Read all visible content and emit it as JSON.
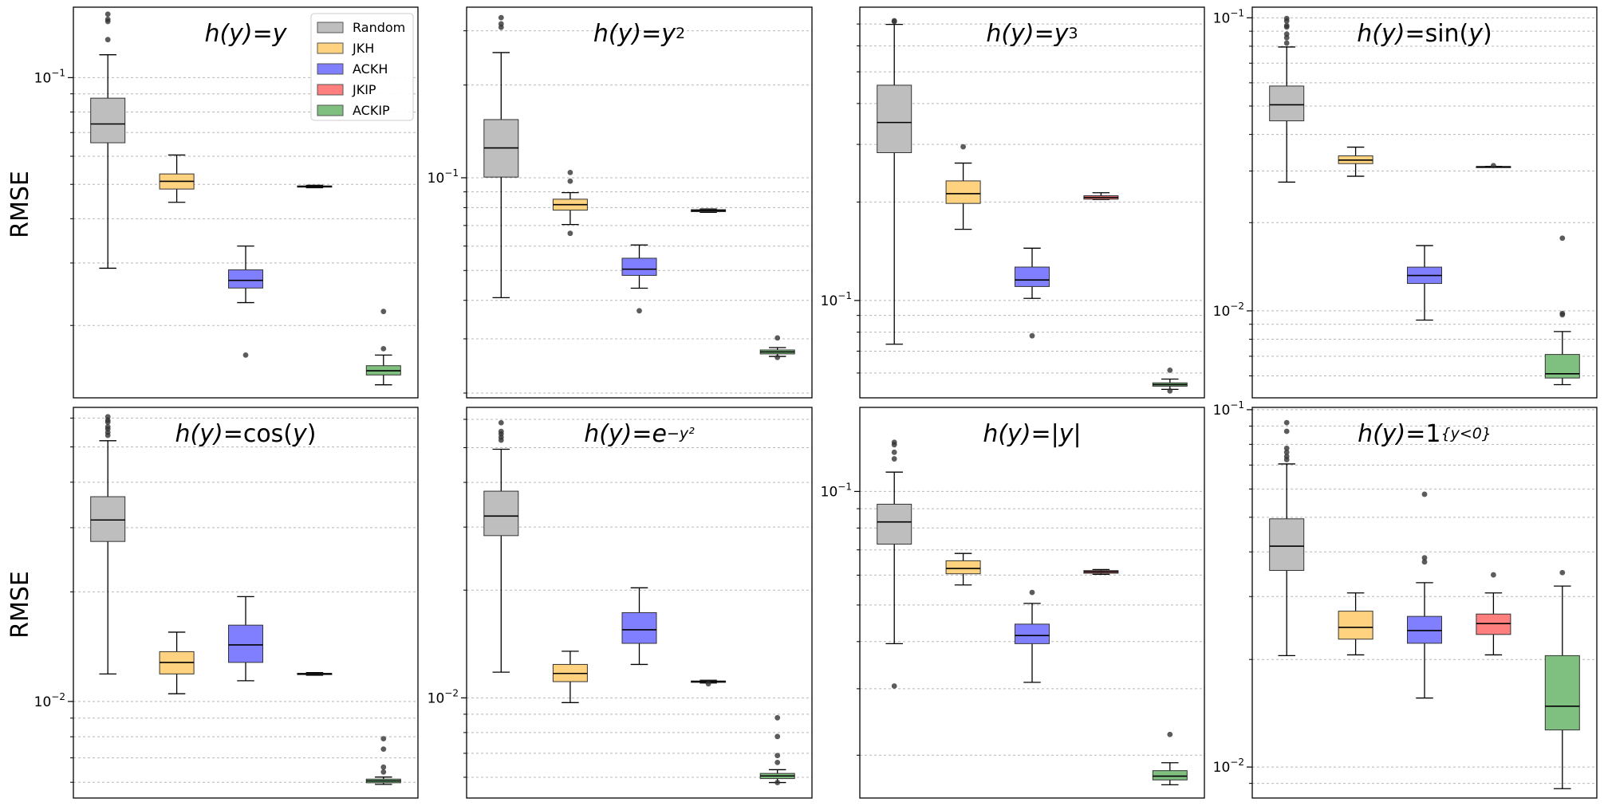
{
  "chart_data": [
    {
      "type": "box",
      "title": "h(y) = y",
      "ylabel": "RMSE",
      "yscale": "log",
      "ylim": [
        0.0125,
        0.158
      ],
      "yticks": [
        {
          "value": 0.1,
          "label": "10",
          "exp": "−1"
        }
      ],
      "legend": {
        "position": "top-right",
        "entries": [
          {
            "name": "Random",
            "color": "#bebebe"
          },
          {
            "name": "JKH",
            "color": "#ffd27f"
          },
          {
            "name": "ACKH",
            "color": "#7f7fff"
          },
          {
            "name": "JKIP",
            "color": "#ff7f7f"
          },
          {
            "name": "ACKIP",
            "color": "#7fbf7f"
          }
        ]
      },
      "boxes": [
        {
          "name": "Random",
          "color": "#bebebe",
          "q1": 0.0655,
          "median": 0.074,
          "q3": 0.0875,
          "wlo": 0.029,
          "whi": 0.116,
          "fliers": [
            0.151,
            0.146,
            0.144,
            0.128
          ]
        },
        {
          "name": "JKH",
          "color": "#ffd27f",
          "q1": 0.0485,
          "median": 0.051,
          "q3": 0.0535,
          "wlo": 0.0445,
          "whi": 0.0605,
          "fliers": []
        },
        {
          "name": "ACKH",
          "color": "#7f7fff",
          "q1": 0.0255,
          "median": 0.0268,
          "q3": 0.0287,
          "wlo": 0.0232,
          "whi": 0.0335,
          "fliers": [
            0.0165
          ]
        },
        {
          "name": "JKIP",
          "color": "#ff7f7f",
          "q1": 0.0491,
          "median": 0.0493,
          "q3": 0.0495,
          "wlo": 0.0489,
          "whi": 0.0497,
          "fliers": []
        },
        {
          "name": "ACKIP",
          "color": "#7fbf7f",
          "q1": 0.0145,
          "median": 0.0149,
          "q3": 0.0154,
          "wlo": 0.0136,
          "whi": 0.0165,
          "fliers": [
            0.0219,
            0.0172
          ]
        }
      ]
    },
    {
      "type": "box",
      "title": "h(y) = y^2",
      "ylabel": "",
      "yscale": "log",
      "ylim": [
        0.0193,
        0.358
      ],
      "yticks": [
        {
          "value": 0.1,
          "label": "10",
          "exp": "−1"
        }
      ],
      "boxes": [
        {
          "name": "Random",
          "color": "#bebebe",
          "q1": 0.1005,
          "median": 0.125,
          "q3": 0.1545,
          "wlo": 0.0408,
          "whi": 0.255,
          "fliers": [
            0.331,
            0.316,
            0.308
          ]
        },
        {
          "name": "JKH",
          "color": "#ffd27f",
          "q1": 0.0785,
          "median": 0.0818,
          "q3": 0.0852,
          "wlo": 0.0705,
          "whi": 0.0895,
          "fliers": [
            0.104,
            0.0975,
            0.066
          ]
        },
        {
          "name": "ACKH",
          "color": "#7f7fff",
          "q1": 0.0482,
          "median": 0.0505,
          "q3": 0.0548,
          "wlo": 0.0438,
          "whi": 0.0605,
          "fliers": [
            0.037
          ]
        },
        {
          "name": "JKIP",
          "color": "#ff7f7f",
          "q1": 0.0776,
          "median": 0.0782,
          "q3": 0.0788,
          "wlo": 0.0772,
          "whi": 0.0792,
          "fliers": []
        },
        {
          "name": "ACKIP",
          "color": "#7fbf7f",
          "q1": 0.0268,
          "median": 0.0272,
          "q3": 0.0276,
          "wlo": 0.0263,
          "whi": 0.0281,
          "fliers": [
            0.0302,
            0.0261
          ]
        }
      ]
    },
    {
      "type": "box",
      "title": "h(y) = y^3",
      "ylabel": "",
      "yscale": "log",
      "ylim": [
        0.0504,
        0.788
      ],
      "yticks": [
        {
          "value": 0.1,
          "label": "10",
          "exp": "−1"
        }
      ],
      "boxes": [
        {
          "name": "Random",
          "color": "#bebebe",
          "q1": 0.283,
          "median": 0.35,
          "q3": 0.455,
          "wlo": 0.0735,
          "whi": 0.698,
          "fliers": [
            0.716,
            0.712
          ]
        },
        {
          "name": "JKH",
          "color": "#ffd27f",
          "q1": 0.198,
          "median": 0.212,
          "q3": 0.232,
          "wlo": 0.165,
          "whi": 0.263,
          "fliers": [
            0.295
          ]
        },
        {
          "name": "ACKH",
          "color": "#7f7fff",
          "q1": 0.1103,
          "median": 0.1155,
          "q3": 0.1265,
          "wlo": 0.1015,
          "whi": 0.1445,
          "fliers": [
            0.078
          ]
        },
        {
          "name": "JKIP",
          "color": "#ff7f7f",
          "q1": 0.204,
          "median": 0.2065,
          "q3": 0.209,
          "wlo": 0.2035,
          "whi": 0.2135,
          "fliers": []
        },
        {
          "name": "ACKIP",
          "color": "#7fbf7f",
          "q1": 0.0547,
          "median": 0.0553,
          "q3": 0.056,
          "wlo": 0.0535,
          "whi": 0.0575,
          "fliers": [
            0.0612,
            0.0529
          ]
        }
      ]
    },
    {
      "type": "box",
      "title": "h(y) = sin(y)",
      "ylabel": "",
      "yscale": "log",
      "ylim": [
        0.00505,
        0.1087
      ],
      "yticks": [
        {
          "value": 0.1,
          "label": "10",
          "exp": "−1"
        },
        {
          "value": 0.01,
          "label": "10",
          "exp": "−2"
        }
      ],
      "boxes": [
        {
          "name": "Random",
          "color": "#bebebe",
          "q1": 0.0445,
          "median": 0.0505,
          "q3": 0.0585,
          "wlo": 0.0275,
          "whi": 0.0795,
          "fliers": [
            0.0995,
            0.0975,
            0.094,
            0.093,
            0.088,
            0.0855,
            0.082
          ]
        },
        {
          "name": "JKH",
          "color": "#ffd27f",
          "q1": 0.0318,
          "median": 0.0327,
          "q3": 0.0338,
          "wlo": 0.0288,
          "whi": 0.0362,
          "fliers": []
        },
        {
          "name": "ACKH",
          "color": "#7f7fff",
          "q1": 0.0124,
          "median": 0.0132,
          "q3": 0.0141,
          "wlo": 0.0093,
          "whi": 0.0167,
          "fliers": []
        },
        {
          "name": "JKIP",
          "color": "#ff7f7f",
          "q1": 0.0309,
          "median": 0.031,
          "q3": 0.0311,
          "wlo": 0.0309,
          "whi": 0.0311,
          "fliers": [
            0.0313
          ]
        },
        {
          "name": "ACKIP",
          "color": "#7fbf7f",
          "q1": 0.0059,
          "median": 0.0061,
          "q3": 0.0071,
          "wlo": 0.0056,
          "whi": 0.0085,
          "fliers": [
            0.0177,
            0.0098,
            0.0097
          ]
        }
      ]
    },
    {
      "type": "box",
      "title": "h(y) = cos(y)",
      "ylabel": "RMSE",
      "yscale": "log",
      "ylim": [
        0.00543,
        0.0642
      ],
      "yticks": [
        {
          "value": 0.01,
          "label": "10",
          "exp": "−2"
        }
      ],
      "boxes": [
        {
          "name": "Random",
          "color": "#bebebe",
          "q1": 0.0275,
          "median": 0.0315,
          "q3": 0.0365,
          "wlo": 0.0119,
          "whi": 0.052,
          "fliers": [
            0.0605,
            0.0592,
            0.0585,
            0.0568,
            0.056,
            0.0548,
            0.0538
          ]
        },
        {
          "name": "JKH",
          "color": "#ffd27f",
          "q1": 0.0119,
          "median": 0.0128,
          "q3": 0.0137,
          "wlo": 0.0105,
          "whi": 0.0155,
          "fliers": []
        },
        {
          "name": "ACKH",
          "color": "#7f7fff",
          "q1": 0.0128,
          "median": 0.0143,
          "q3": 0.0162,
          "wlo": 0.0114,
          "whi": 0.0194,
          "fliers": []
        },
        {
          "name": "JKIP",
          "color": "#ff7f7f",
          "q1": 0.01185,
          "median": 0.0119,
          "q3": 0.01195,
          "wlo": 0.0118,
          "whi": 0.012,
          "fliers": []
        },
        {
          "name": "ACKIP",
          "color": "#7fbf7f",
          "q1": 0.00598,
          "median": 0.00605,
          "q3": 0.00612,
          "wlo": 0.00592,
          "whi": 0.0062,
          "fliers": [
            0.0079,
            0.0074,
            0.0066,
            0.0064
          ]
        }
      ]
    },
    {
      "type": "box",
      "title": "h(y) = e^{-y^2}",
      "ylabel": "",
      "yscale": "log",
      "ylim": [
        0.00525,
        0.0648
      ],
      "yticks": [
        {
          "value": 0.01,
          "label": "10",
          "exp": "−2"
        }
      ],
      "boxes": [
        {
          "name": "Random",
          "color": "#bebebe",
          "q1": 0.0284,
          "median": 0.0322,
          "q3": 0.0378,
          "wlo": 0.0118,
          "whi": 0.0495,
          "fliers": [
            0.0587,
            0.0555,
            0.0546,
            0.0535,
            0.0525
          ]
        },
        {
          "name": "JKH",
          "color": "#ffd27f",
          "q1": 0.0111,
          "median": 0.0117,
          "q3": 0.0124,
          "wlo": 0.0097,
          "whi": 0.0135,
          "fliers": []
        },
        {
          "name": "ACKH",
          "color": "#7f7fff",
          "q1": 0.0142,
          "median": 0.0155,
          "q3": 0.0173,
          "wlo": 0.0124,
          "whi": 0.0203,
          "fliers": []
        },
        {
          "name": "JKIP",
          "color": "#ff7f7f",
          "q1": 0.01105,
          "median": 0.0111,
          "q3": 0.01115,
          "wlo": 0.011,
          "whi": 0.0112,
          "fliers": [
            0.01095
          ]
        },
        {
          "name": "ACKIP",
          "color": "#7fbf7f",
          "q1": 0.00595,
          "median": 0.00605,
          "q3": 0.00615,
          "wlo": 0.0058,
          "whi": 0.0063,
          "fliers": [
            0.0088,
            0.0078,
            0.0069,
            0.0066,
            0.0058
          ]
        }
      ]
    },
    {
      "type": "box",
      "title": "h(y) = |y|",
      "ylabel": "",
      "yscale": "log",
      "ylim": [
        0.0154,
        0.167
      ],
      "yticks": [
        {
          "value": 0.1,
          "label": "10",
          "exp": "−1"
        }
      ],
      "boxes": [
        {
          "name": "Random",
          "color": "#bebebe",
          "q1": 0.0725,
          "median": 0.083,
          "q3": 0.0925,
          "wlo": 0.0395,
          "whi": 0.1125,
          "fliers": [
            0.135,
            0.133,
            0.127,
            0.122,
            0.0305
          ]
        },
        {
          "name": "JKH",
          "color": "#ffd27f",
          "q1": 0.0605,
          "median": 0.0625,
          "q3": 0.0655,
          "wlo": 0.0565,
          "whi": 0.0685,
          "fliers": []
        },
        {
          "name": "ACKH",
          "color": "#7f7fff",
          "q1": 0.0395,
          "median": 0.0415,
          "q3": 0.0445,
          "wlo": 0.0312,
          "whi": 0.0505,
          "fliers": [
            0.054
          ]
        },
        {
          "name": "JKIP",
          "color": "#ff7f7f",
          "q1": 0.0607,
          "median": 0.0612,
          "q3": 0.0617,
          "wlo": 0.0603,
          "whi": 0.0621,
          "fliers": []
        },
        {
          "name": "ACKIP",
          "color": "#7fbf7f",
          "q1": 0.0172,
          "median": 0.0176,
          "q3": 0.0182,
          "wlo": 0.0167,
          "whi": 0.0191,
          "fliers": [
            0.0227
          ]
        }
      ]
    },
    {
      "type": "box",
      "title": "h(y) = 1_{y<0}",
      "ylabel": "",
      "yscale": "log",
      "ylim": [
        0.00819,
        0.1015
      ],
      "yticks": [
        {
          "value": 0.1,
          "label": "10",
          "exp": "−1"
        },
        {
          "value": 0.01,
          "label": "10",
          "exp": "−2"
        }
      ],
      "boxes": [
        {
          "name": "Random",
          "color": "#bebebe",
          "q1": 0.0355,
          "median": 0.0415,
          "q3": 0.0495,
          "wlo": 0.0205,
          "whi": 0.0705,
          "fliers": [
            0.092,
            0.087,
            0.078,
            0.076,
            0.074,
            0.0725
          ]
        },
        {
          "name": "JKH",
          "color": "#ffd27f",
          "q1": 0.0228,
          "median": 0.0246,
          "q3": 0.0273,
          "wlo": 0.0206,
          "whi": 0.0307,
          "fliers": []
        },
        {
          "name": "ACKH",
          "color": "#7f7fff",
          "q1": 0.0222,
          "median": 0.0241,
          "q3": 0.0264,
          "wlo": 0.0156,
          "whi": 0.0328,
          "fliers": [
            0.058,
            0.0385,
            0.0375
          ]
        },
        {
          "name": "JKIP",
          "color": "#ff7f7f",
          "q1": 0.0235,
          "median": 0.0252,
          "q3": 0.0268,
          "wlo": 0.0206,
          "whi": 0.0307,
          "fliers": [
            0.0345
          ]
        },
        {
          "name": "ACKIP",
          "color": "#7fbf7f",
          "q1": 0.0127,
          "median": 0.0148,
          "q3": 0.0205,
          "wlo": 0.0087,
          "whi": 0.0321,
          "fliers": [
            0.035
          ]
        }
      ]
    }
  ]
}
